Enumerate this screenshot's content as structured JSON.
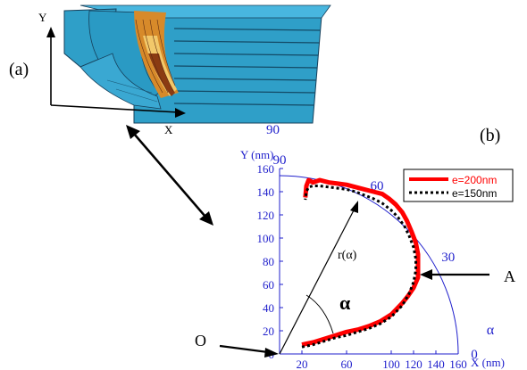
{
  "panel_a": {
    "label": "(a)",
    "axis_y": "Y",
    "axis_x": "X",
    "tick_90": "90"
  },
  "panel_b": {
    "label": "(b)"
  },
  "chart_data": {
    "type": "line",
    "title": "",
    "xlabel": "X (nm)",
    "ylabel": "Y (nm)",
    "xlim": [
      0,
      160
    ],
    "ylim": [
      0,
      160
    ],
    "x_ticks": [
      "20",
      "60",
      "100",
      "120",
      "140",
      "160"
    ],
    "y_ticks": [
      "0",
      "20",
      "40",
      "60",
      "80",
      "100",
      "120",
      "140",
      "160"
    ],
    "angle_ticks": [
      "90",
      "60",
      "30",
      "0"
    ],
    "angle_symbol": "α",
    "legend": "top-right",
    "annotations": {
      "radius_label": "r(α)",
      "alpha_label": "α",
      "origin_label": "O",
      "point_label": "A"
    },
    "series": [
      {
        "name": "e=200nm",
        "color": "#ff0000",
        "style": "solid",
        "points": [
          [
            20,
            8
          ],
          [
            30,
            10
          ],
          [
            40,
            13
          ],
          [
            50,
            16
          ],
          [
            60,
            19
          ],
          [
            70,
            21
          ],
          [
            80,
            24
          ],
          [
            90,
            28
          ],
          [
            100,
            34
          ],
          [
            110,
            44
          ],
          [
            115,
            50
          ],
          [
            120,
            57
          ],
          [
            124,
            66
          ],
          [
            124,
            76
          ],
          [
            124,
            86
          ],
          [
            122,
            96
          ],
          [
            118,
            106
          ],
          [
            114,
            115
          ],
          [
            110,
            122
          ],
          [
            104,
            129
          ],
          [
            98,
            134
          ],
          [
            92,
            138
          ],
          [
            84,
            140
          ],
          [
            76,
            142
          ],
          [
            68,
            144
          ],
          [
            60,
            146
          ],
          [
            52,
            147
          ],
          [
            44,
            148
          ],
          [
            36,
            150
          ],
          [
            30,
            148
          ],
          [
            26,
            150
          ],
          [
            24,
            145
          ],
          [
            23,
            135
          ]
        ]
      },
      {
        "name": "e=150nm",
        "color": "#000000",
        "style": "dotted",
        "points": [
          [
            20,
            6
          ],
          [
            30,
            8
          ],
          [
            40,
            11
          ],
          [
            50,
            14
          ],
          [
            60,
            16
          ],
          [
            70,
            19
          ],
          [
            80,
            22
          ],
          [
            90,
            26
          ],
          [
            100,
            32
          ],
          [
            110,
            42
          ],
          [
            116,
            52
          ],
          [
            120,
            62
          ],
          [
            122,
            72
          ],
          [
            122,
            82
          ],
          [
            120,
            92
          ],
          [
            116,
            102
          ],
          [
            112,
            110
          ],
          [
            106,
            118
          ],
          [
            100,
            124
          ],
          [
            92,
            130
          ],
          [
            84,
            134
          ],
          [
            76,
            137
          ],
          [
            68,
            140
          ],
          [
            60,
            142
          ],
          [
            52,
            143
          ],
          [
            44,
            144
          ],
          [
            36,
            145
          ],
          [
            30,
            145
          ],
          [
            26,
            144
          ],
          [
            24,
            140
          ],
          [
            23,
            133
          ]
        ]
      }
    ]
  }
}
